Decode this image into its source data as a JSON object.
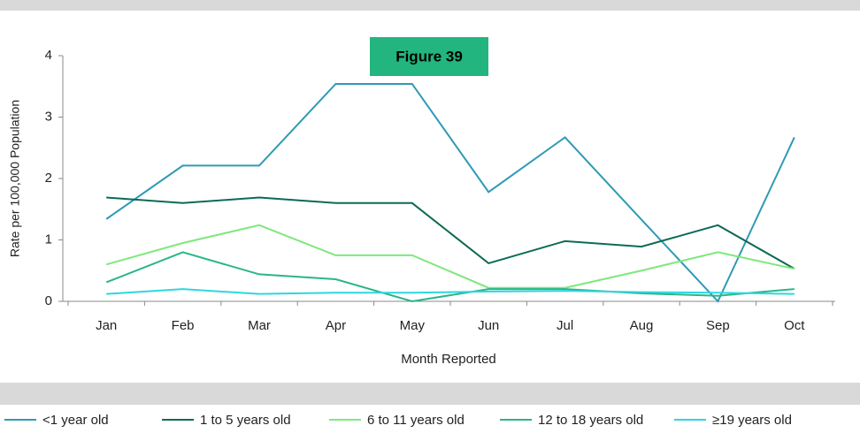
{
  "chart_data": {
    "type": "line",
    "annotation": "Figure 39",
    "xlabel": "Month Reported",
    "ylabel": "Rate per 100,000 Population",
    "categories": [
      "Jan",
      "Feb",
      "Mar",
      "Apr",
      "May",
      "Jun",
      "Jul",
      "Aug",
      "Sep",
      "Oct"
    ],
    "ylim": [
      0,
      4
    ],
    "yticks": [
      0,
      1,
      2,
      3,
      4
    ],
    "legend": "bottom",
    "series": [
      {
        "name": "<1 year old",
        "color": "#2e9ab4",
        "values": [
          1.34,
          2.21,
          2.21,
          3.54,
          3.54,
          1.78,
          2.67,
          1.33,
          0,
          2.67
        ]
      },
      {
        "name": "1 to 5 years old",
        "color": "#0b6b55",
        "values": [
          1.69,
          1.6,
          1.69,
          1.6,
          1.6,
          0.62,
          0.98,
          0.89,
          1.24,
          0.53
        ]
      },
      {
        "name": "6 to 11 years old",
        "color": "#7de87d",
        "values": [
          0.6,
          0.95,
          1.24,
          0.75,
          0.75,
          0.22,
          0.22,
          0.5,
          0.8,
          0.53
        ]
      },
      {
        "name": "12 to 18 years old",
        "color": "#2ab58a",
        "values": [
          0.31,
          0.8,
          0.44,
          0.36,
          0,
          0.2,
          0.2,
          0.13,
          0.09,
          0.2
        ]
      },
      {
        "name": "≥19 years old",
        "color": "#2ed6e0",
        "values": [
          0.12,
          0.2,
          0.12,
          0.14,
          0.14,
          0.16,
          0.17,
          0.15,
          0.14,
          0.12
        ]
      }
    ]
  }
}
